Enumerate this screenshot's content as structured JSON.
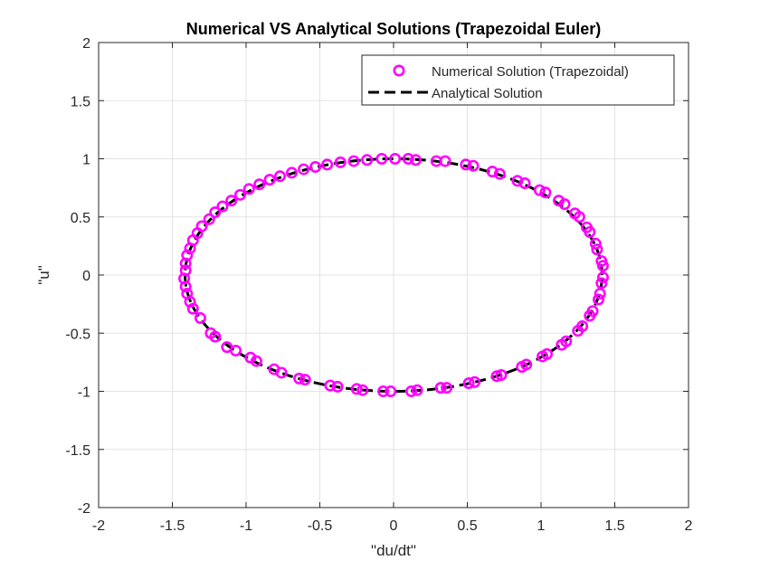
{
  "chart_data": {
    "type": "scatter",
    "title": "Numerical VS Analytical Solutions (Trapezoidal Euler)",
    "xlabel": "\"du/dt\"",
    "ylabel": "\"u\"",
    "xlim": [
      -2,
      2
    ],
    "ylim": [
      -2,
      2
    ],
    "xticks": [
      -2,
      -1.5,
      -1,
      -0.5,
      0,
      0.5,
      1,
      1.5,
      2
    ],
    "yticks": [
      -2,
      -1.5,
      -1,
      -0.5,
      0,
      0.5,
      1,
      1.5,
      2
    ],
    "xtick_labels": [
      "-2",
      "-1.5",
      "-1",
      "-0.5",
      "0",
      "0.5",
      "1",
      "1.5",
      "2"
    ],
    "ytick_labels": [
      "-2",
      "-1.5",
      "-1",
      "-0.5",
      "0",
      "0.5",
      "1",
      "1.5",
      "2"
    ],
    "grid": true,
    "legend_position": "top-right",
    "colors": {
      "numerical": "#ff00ff",
      "analytical": "#000000"
    },
    "series": [
      {
        "name": "Numerical Solution (Trapezoidal)",
        "style": "circle-markers",
        "points": [
          [
            0.1,
            1.0
          ],
          [
            0.01,
            1.0
          ],
          [
            -0.08,
            1.0
          ],
          [
            -0.18,
            0.99
          ],
          [
            -0.27,
            0.98
          ],
          [
            -0.36,
            0.97
          ],
          [
            -0.45,
            0.95
          ],
          [
            -0.53,
            0.93
          ],
          [
            -0.61,
            0.91
          ],
          [
            -0.69,
            0.88
          ],
          [
            -0.77,
            0.85
          ],
          [
            -0.84,
            0.82
          ],
          [
            -0.91,
            0.78
          ],
          [
            -0.98,
            0.74
          ],
          [
            -1.04,
            0.69
          ],
          [
            -1.1,
            0.64
          ],
          [
            -1.16,
            0.59
          ],
          [
            -1.21,
            0.54
          ],
          [
            -1.25,
            0.48
          ],
          [
            -1.3,
            0.42
          ],
          [
            -1.33,
            0.36
          ],
          [
            -1.36,
            0.3
          ],
          [
            -1.38,
            0.23
          ],
          [
            -1.4,
            0.17
          ],
          [
            -1.41,
            0.1
          ],
          [
            -1.41,
            0.04
          ],
          [
            -1.42,
            -0.03
          ],
          [
            -1.41,
            -0.1
          ],
          [
            -1.4,
            -0.16
          ],
          [
            -1.38,
            -0.23
          ],
          [
            -1.36,
            -0.29
          ],
          [
            -1.31,
            -0.37
          ],
          [
            -1.24,
            -0.5
          ],
          [
            -1.21,
            -0.53
          ],
          [
            -1.13,
            -0.62
          ],
          [
            -1.07,
            -0.65
          ],
          [
            -0.97,
            -0.71
          ],
          [
            -0.93,
            -0.74
          ],
          [
            -0.81,
            -0.81
          ],
          [
            -0.76,
            -0.84
          ],
          [
            -0.64,
            -0.89
          ],
          [
            -0.6,
            -0.9
          ],
          [
            -0.43,
            -0.95
          ],
          [
            -0.38,
            -0.96
          ],
          [
            -0.25,
            -0.98
          ],
          [
            -0.21,
            -0.99
          ],
          [
            -0.07,
            -1.0
          ],
          [
            -0.02,
            -1.0
          ],
          [
            0.12,
            -1.0
          ],
          [
            0.16,
            -0.99
          ],
          [
            0.32,
            -0.97
          ],
          [
            0.36,
            -0.97
          ],
          [
            0.51,
            -0.93
          ],
          [
            0.55,
            -0.92
          ],
          [
            0.7,
            -0.87
          ],
          [
            0.73,
            -0.86
          ],
          [
            0.87,
            -0.79
          ],
          [
            0.9,
            -0.77
          ],
          [
            1.01,
            -0.7
          ],
          [
            1.04,
            -0.68
          ],
          [
            1.14,
            -0.6
          ],
          [
            1.17,
            -0.57
          ],
          [
            1.25,
            -0.48
          ],
          [
            1.28,
            -0.44
          ],
          [
            1.33,
            -0.35
          ],
          [
            1.35,
            -0.31
          ],
          [
            1.39,
            -0.21
          ],
          [
            1.4,
            -0.16
          ],
          [
            1.41,
            -0.07
          ],
          [
            1.42,
            -0.02
          ],
          [
            1.42,
            0.08
          ],
          [
            1.41,
            0.12
          ],
          [
            1.38,
            0.22
          ],
          [
            1.37,
            0.27
          ],
          [
            1.33,
            0.37
          ],
          [
            1.31,
            0.41
          ],
          [
            1.26,
            0.5
          ],
          [
            1.23,
            0.53
          ],
          [
            1.16,
            0.61
          ],
          [
            1.12,
            0.64
          ],
          [
            1.03,
            0.71
          ],
          [
            0.99,
            0.73
          ],
          [
            0.89,
            0.79
          ],
          [
            0.84,
            0.81
          ],
          [
            0.72,
            0.87
          ],
          [
            0.67,
            0.89
          ],
          [
            0.54,
            0.94
          ],
          [
            0.49,
            0.95
          ],
          [
            0.35,
            0.98
          ],
          [
            0.29,
            0.98
          ],
          [
            0.15,
            0.99
          ]
        ]
      },
      {
        "name": "Analytical Solution",
        "style": "dashed-line",
        "x_amplitude": 1.414,
        "y_amplitude": 1.0
      }
    ]
  }
}
